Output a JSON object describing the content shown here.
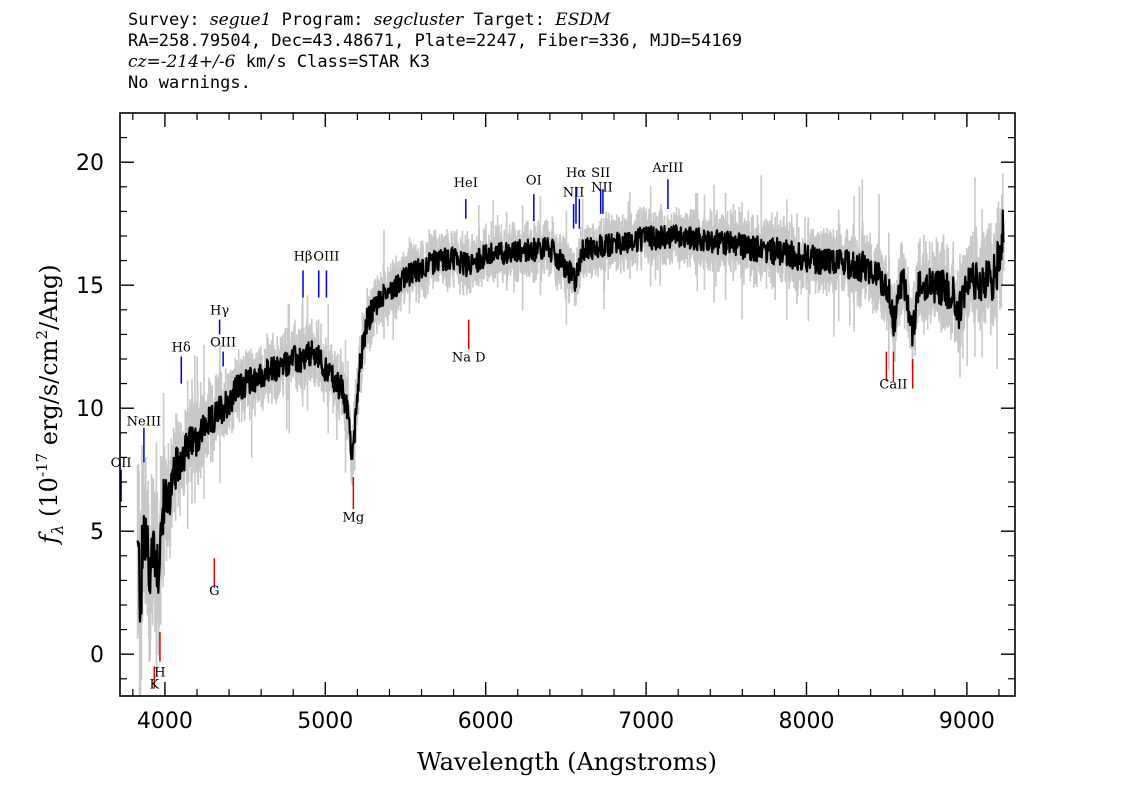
{
  "header": {
    "survey_label": "Survey:",
    "survey": "segue1",
    "program_label": "Program:",
    "program": "segcluster",
    "target_label": "Target:",
    "target": "ESDM",
    "line2": "RA=258.79504, Dec=43.48671, Plate=2247, Fiber=336, MJD=54169",
    "cz_prefix": "cz=",
    "cz_value": "-214+/-6",
    "cz_suffix": " km/s Class=STAR K3",
    "warnings": "No warnings."
  },
  "chart_data": {
    "type": "line",
    "xlabel": "Wavelength (Angstroms)",
    "ylabel": "fλ (10^-17 erg/s/cm^2/Ang)",
    "xlim": [
      3720,
      9300
    ],
    "ylim": [
      -1.7,
      22
    ],
    "xticks": [
      4000,
      5000,
      6000,
      7000,
      8000,
      9000
    ],
    "xtick_labels": [
      "4000",
      "5000",
      "6000",
      "7000",
      "8000",
      "9000"
    ],
    "yticks": [
      0,
      5,
      10,
      15,
      20
    ],
    "ytick_labels": [
      "0",
      "5",
      "10",
      "15",
      "20"
    ],
    "colors": {
      "flux": "#000000",
      "error": "#c8c8c8",
      "emission": "#0000cc",
      "absorption": "#dd0000"
    },
    "series": [
      {
        "x": [
          3830,
          3850,
          3870,
          3900,
          3930,
          3960,
          3990,
          4030,
          4070,
          4100,
          4150,
          4200,
          4250,
          4300,
          4350,
          4400,
          4450,
          4500,
          4550,
          4600,
          4650,
          4700,
          4750,
          4800,
          4850,
          4900,
          4950,
          5000,
          5050,
          5100,
          5150,
          5170,
          5190,
          5220,
          5260,
          5300,
          5350,
          5400,
          5500,
          5600,
          5700,
          5800,
          5890,
          6000,
          6200,
          6400,
          6560,
          6600,
          6800,
          7000,
          7200,
          7400,
          7600,
          7800,
          8000,
          8200,
          8400,
          8498,
          8520,
          8542,
          8600,
          8662,
          8700,
          8800,
          8900,
          8950,
          9000,
          9100,
          9150,
          9200,
          9230
        ],
        "y": [
          4.0,
          2.5,
          5.0,
          3.5,
          4.5,
          3.5,
          6.0,
          6.5,
          7.5,
          8.0,
          8.5,
          8.8,
          9.3,
          9.5,
          10.0,
          10.3,
          10.8,
          11.0,
          11.2,
          11.3,
          11.5,
          11.6,
          11.8,
          12.0,
          11.9,
          12.2,
          12.1,
          11.6,
          11.2,
          10.8,
          9.5,
          7.8,
          10.0,
          12.0,
          13.5,
          14.0,
          14.5,
          14.8,
          15.3,
          15.7,
          16.0,
          16.1,
          15.8,
          16.2,
          16.4,
          16.5,
          15.2,
          16.4,
          16.7,
          16.9,
          17.0,
          16.8,
          16.6,
          16.4,
          16.1,
          15.9,
          15.7,
          15.0,
          14.5,
          13.4,
          15.4,
          12.9,
          15.2,
          15.0,
          14.8,
          14.0,
          15.0,
          15.2,
          15.0,
          16.0,
          17.5
        ],
        "errors": [
          2.5,
          2.5,
          2.3,
          2.0,
          1.8,
          1.6,
          1.4,
          1.2,
          1.1,
          1.0,
          0.9,
          0.9,
          0.8,
          0.8,
          0.8,
          0.8,
          0.7,
          0.7,
          0.7,
          0.7,
          0.7,
          0.7,
          0.7,
          0.7,
          0.7,
          0.7,
          0.7,
          0.7,
          0.7,
          0.7,
          0.8,
          0.8,
          0.8,
          0.7,
          0.7,
          0.7,
          0.6,
          0.6,
          0.6,
          0.6,
          0.6,
          0.6,
          0.6,
          0.6,
          0.6,
          0.6,
          0.6,
          0.6,
          0.6,
          0.6,
          0.6,
          0.6,
          0.7,
          0.7,
          0.7,
          0.7,
          0.8,
          0.8,
          0.8,
          0.8,
          0.8,
          0.8,
          0.9,
          0.9,
          1.0,
          1.0,
          1.0,
          1.1,
          1.2,
          1.2,
          1.3
        ]
      }
    ],
    "emission_lines": [
      {
        "label": "OII",
        "wave": 3727,
        "y1": 6.2,
        "y2": 7.5,
        "label_y": 7.6
      },
      {
        "label": "NeIII",
        "wave": 3869,
        "y1": 7.8,
        "y2": 9.2,
        "label_y": 9.3
      },
      {
        "label": "Hδ",
        "wave": 4102,
        "y1": 11.0,
        "y2": 12.1,
        "label_y": 12.3
      },
      {
        "label": "Hγ",
        "wave": 4341,
        "y1": 13.0,
        "y2": 13.6,
        "label_y": 13.8
      },
      {
        "label": "OIII",
        "wave": 4363,
        "y1": 11.7,
        "y2": 12.3,
        "label_y": 12.5
      },
      {
        "label": "Hβ",
        "wave": 4861,
        "y1": 15.6,
        "y2": 14.5,
        "label_y": 16.0
      },
      {
        "label": "OIII",
        "wave": 4959,
        "y1": 15.6,
        "y2": 14.5
      },
      {
        "label": "OIII",
        "wave": 5007,
        "y1": 15.6,
        "y2": 14.5,
        "label_y": 16.0
      },
      {
        "label": "HeI",
        "wave": 5876,
        "y1": 18.5,
        "y2": 17.7,
        "label_y": 19.0
      },
      {
        "label": "OI",
        "wave": 6300,
        "y1": 18.7,
        "y2": 17.6,
        "label_y": 19.1
      },
      {
        "label": "NII",
        "wave": 6548,
        "y1": 18.3,
        "y2": 17.3,
        "label_y": 18.6
      },
      {
        "label": "Hα",
        "wave": 6563,
        "y1": 19.0,
        "y2": 17.5,
        "label_y": 19.4
      },
      {
        "label": "NII",
        "wave": 6584,
        "y1": 18.5,
        "y2": 17.3
      },
      {
        "label": "SII",
        "wave": 6717,
        "y1": 18.9,
        "y2": 17.9,
        "label_y": 19.4
      },
      {
        "label": "SII",
        "wave": 6731,
        "y1": 18.9,
        "y2": 17.9
      },
      {
        "label": "NII",
        "wave": 6725,
        "label_y": 18.8
      },
      {
        "label": "ArIII",
        "wave": 7136,
        "y1": 19.3,
        "y2": 18.1,
        "label_y": 19.6
      }
    ],
    "absorption_lines": [
      {
        "label": "K",
        "wave": 3934,
        "y1": -0.5,
        "y2": -1.4,
        "label_y": -1.4
      },
      {
        "label": "H",
        "wave": 3969,
        "y1": 0.9,
        "y2": -0.3,
        "label_y": -0.9
      },
      {
        "label": "G",
        "wave": 4308,
        "y1": 2.7,
        "y2": 3.9,
        "label_y": 2.4
      },
      {
        "label": "Mg",
        "wave": 5175,
        "y1": 5.9,
        "y2": 7.2,
        "label_y": 5.4
      },
      {
        "label": "Na D",
        "wave": 5894,
        "y1": 12.4,
        "y2": 13.6,
        "label_y": 11.9
      },
      {
        "label": "CaII",
        "wave": 8498,
        "y1": 12.3,
        "y2": 11.1
      },
      {
        "label": "CaII",
        "wave": 8542,
        "y1": 12.3,
        "y2": 11.1,
        "label_y": 10.8
      },
      {
        "label": "CaII",
        "wave": 8662,
        "y1": 12.0,
        "y2": 10.8
      }
    ]
  }
}
